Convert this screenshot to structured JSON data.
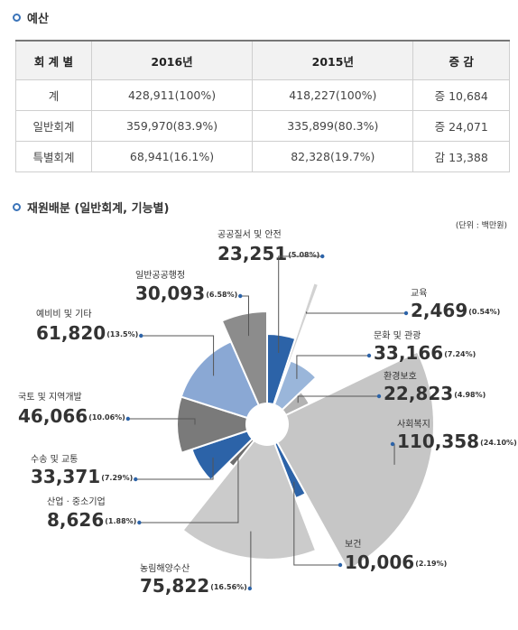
{
  "section1_title": "예산",
  "table": {
    "headers": [
      "회 계 별",
      "2016년",
      "2015년",
      "증 감"
    ],
    "rows": [
      [
        "계",
        "428,911(100%)",
        "418,227(100%)",
        "증 10,684"
      ],
      [
        "일반회계",
        "359,970(83.9%)",
        "335,899(80.3%)",
        "증 24,071"
      ],
      [
        "특별회계",
        "68,941(16.1%)",
        "82,328(19.7%)",
        "감 13,388"
      ]
    ]
  },
  "chart_data": {
    "type": "pie",
    "title": "재원배분 (일반회계, 기능별)",
    "unit": "(단위 : 백만원)",
    "categories": [
      "공공질서 및 안전",
      "교육",
      "문화 및 관광",
      "환경보호",
      "사회복지",
      "보건",
      "농림해양수산",
      "산업 · 중소기업",
      "수송 및 교통",
      "국토 및 지역개발",
      "예비비 및 기타",
      "일반공공행정"
    ],
    "values": [
      23251,
      2469,
      33166,
      22823,
      110358,
      10006,
      75822,
      8626,
      33371,
      46066,
      61820,
      30093
    ],
    "value_labels": [
      "23,251",
      "2,469",
      "33,166",
      "22,823",
      "110,358",
      "10,006",
      "75,822",
      "8,626",
      "33,371",
      "46,066",
      "61,820",
      "30,093"
    ],
    "percents": [
      5.08,
      0.54,
      7.24,
      4.98,
      24.1,
      2.19,
      16.56,
      1.88,
      7.29,
      10.06,
      13.5,
      6.58
    ],
    "percent_labels": [
      "(5.08%)",
      "(0.54%)",
      "(7.24%)",
      "(4.98%)",
      "(24.10%)",
      "(2.19%)",
      "(16.56%)",
      "(1.88%)",
      "(7.29%)",
      "(10.06%)",
      "(13.5%)",
      "(6.58%)"
    ],
    "colors": [
      "#2c63a8",
      "#d2d2d2",
      "#9ab6da",
      "#b3b3b3",
      "#c6c6c6",
      "#2c63a8",
      "#cbcbcb",
      "#6f6f6f",
      "#2c63a8",
      "#7a7a7a",
      "#8aa8d4",
      "#8c8c8c"
    ]
  }
}
